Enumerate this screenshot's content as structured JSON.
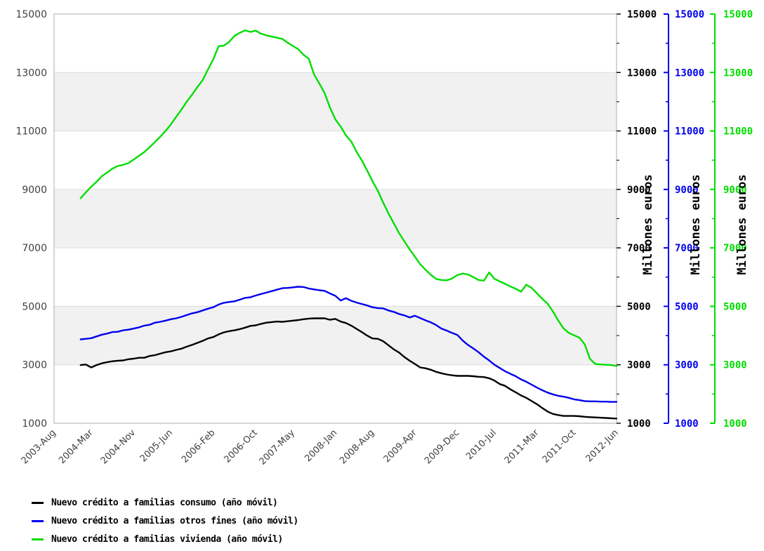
{
  "chart_data": {
    "type": "line",
    "title": "",
    "ylim": [
      1000,
      15000
    ],
    "y_major_ticks": [
      1000,
      3000,
      5000,
      7000,
      9000,
      11000,
      13000,
      15000
    ],
    "y_minor_ticks": [
      2000,
      4000,
      6000,
      8000,
      10000,
      12000,
      14000
    ],
    "bands": [
      [
        3000,
        5000
      ],
      [
        7000,
        9000
      ],
      [
        11000,
        13000
      ]
    ],
    "band_color": "#f1f1f1",
    "grid_color": "#dcdcdc",
    "border_color": "#adadad",
    "x_axis_months": 106,
    "x_tick_month_offsets": [
      0,
      7,
      15,
      22,
      30,
      38,
      45,
      53,
      60,
      68,
      76,
      83,
      91,
      98,
      106
    ],
    "x_tick_labels": [
      "2003-Aug",
      "2004-Mar",
      "2004-Nov",
      "2005-Jun",
      "2006-Feb",
      "2006-Oct",
      "2007-May",
      "2008-Jan",
      "2008-Aug",
      "2009-Apr",
      "2009-Dec",
      "2010-Jul",
      "2011-Mar",
      "2011-Oct",
      "2012-Jun"
    ],
    "series_start_month": "2004-Jan",
    "series_start_offset": 5,
    "right_axes": [
      {
        "color": "#000000",
        "label": "Millones euros"
      },
      {
        "color": "#0000ee",
        "label": "Millones euros"
      },
      {
        "color": "#00dd00",
        "label": "Millones euros"
      }
    ],
    "series": [
      {
        "name": "Nuevo crédito a familias consumo (año móvil)",
        "color": "#000000",
        "values": [
          2990,
          3010,
          2910,
          2990,
          3050,
          3090,
          3120,
          3140,
          3150,
          3190,
          3210,
          3240,
          3240,
          3300,
          3330,
          3380,
          3430,
          3460,
          3510,
          3550,
          3620,
          3680,
          3750,
          3820,
          3900,
          3950,
          4040,
          4110,
          4150,
          4180,
          4220,
          4270,
          4330,
          4350,
          4400,
          4440,
          4460,
          4480,
          4470,
          4490,
          4510,
          4530,
          4560,
          4580,
          4590,
          4590,
          4590,
          4540,
          4570,
          4480,
          4430,
          4340,
          4230,
          4120,
          4000,
          3900,
          3890,
          3810,
          3670,
          3530,
          3420,
          3270,
          3140,
          3030,
          2910,
          2880,
          2830,
          2760,
          2710,
          2670,
          2640,
          2620,
          2620,
          2620,
          2610,
          2590,
          2580,
          2540,
          2460,
          2340,
          2280,
          2160,
          2060,
          1950,
          1870,
          1760,
          1650,
          1520,
          1400,
          1320,
          1280,
          1250,
          1250,
          1250,
          1240,
          1220,
          1210,
          1200,
          1190,
          1180,
          1170,
          1160
        ]
      },
      {
        "name": "Nuevo crédito a familias otros fines (año móvil)",
        "color": "#0000ee",
        "values": [
          3870,
          3890,
          3910,
          3970,
          4030,
          4070,
          4120,
          4130,
          4180,
          4200,
          4240,
          4280,
          4340,
          4370,
          4440,
          4470,
          4510,
          4560,
          4590,
          4640,
          4700,
          4760,
          4800,
          4860,
          4920,
          4970,
          5060,
          5120,
          5150,
          5170,
          5230,
          5290,
          5310,
          5370,
          5420,
          5470,
          5520,
          5570,
          5620,
          5630,
          5650,
          5670,
          5660,
          5610,
          5580,
          5550,
          5530,
          5440,
          5360,
          5200,
          5280,
          5190,
          5130,
          5080,
          5030,
          4970,
          4940,
          4930,
          4860,
          4810,
          4740,
          4690,
          4620,
          4680,
          4600,
          4520,
          4450,
          4360,
          4240,
          4170,
          4090,
          4020,
          3830,
          3680,
          3560,
          3430,
          3280,
          3150,
          3000,
          2890,
          2780,
          2690,
          2610,
          2500,
          2420,
          2320,
          2220,
          2130,
          2050,
          1990,
          1940,
          1910,
          1870,
          1820,
          1790,
          1760,
          1750,
          1750,
          1740,
          1740,
          1730,
          1730
        ]
      },
      {
        "name": "Nuevo crédito a familias vivienda (año móvil)",
        "color": "#00dd00",
        "values": [
          8700,
          8900,
          9090,
          9260,
          9450,
          9580,
          9710,
          9800,
          9840,
          9900,
          10020,
          10150,
          10280,
          10440,
          10620,
          10800,
          11000,
          11220,
          11480,
          11730,
          12000,
          12240,
          12500,
          12740,
          13100,
          13450,
          13900,
          13920,
          14050,
          14250,
          14360,
          14440,
          14390,
          14430,
          14330,
          14270,
          14230,
          14190,
          14150,
          14020,
          13910,
          13800,
          13610,
          13470,
          12930,
          12620,
          12290,
          11800,
          11400,
          11150,
          10850,
          10640,
          10290,
          9990,
          9650,
          9280,
          8960,
          8560,
          8180,
          7850,
          7510,
          7230,
          6950,
          6700,
          6440,
          6250,
          6080,
          5940,
          5900,
          5890,
          5950,
          6070,
          6120,
          6090,
          6000,
          5900,
          5880,
          6160,
          5940,
          5850,
          5770,
          5680,
          5600,
          5500,
          5740,
          5630,
          5440,
          5260,
          5090,
          4830,
          4520,
          4250,
          4090,
          4010,
          3930,
          3700,
          3200,
          3030,
          3010,
          3000,
          2990,
          2960
        ]
      }
    ]
  },
  "legend": {
    "items": [
      {
        "label": "Nuevo crédito a familias consumo (año móvil)",
        "color": "#000000"
      },
      {
        "label": "Nuevo crédito a familias otros fines (año móvil)",
        "color": "#0000ee"
      },
      {
        "label": "Nuevo crédito a familias vivienda (año móvil)",
        "color": "#00dd00"
      }
    ]
  }
}
